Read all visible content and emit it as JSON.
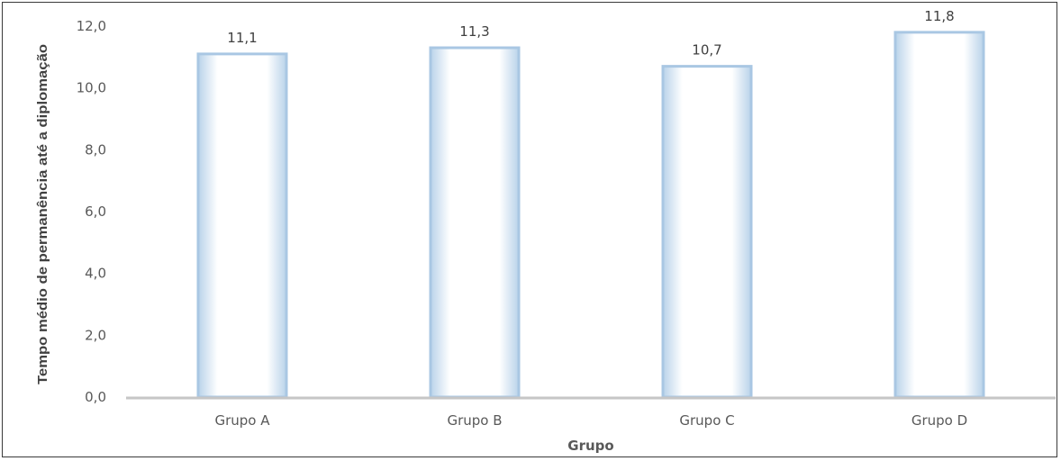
{
  "chart_data": {
    "type": "bar",
    "categories": [
      "Grupo A",
      "Grupo B",
      "Grupo C",
      "Grupo D"
    ],
    "values": [
      11.1,
      11.3,
      10.7,
      11.8
    ],
    "data_labels": [
      "11,1",
      "11,3",
      "10,7",
      "11,8"
    ],
    "title": "",
    "xlabel": "Grupo",
    "ylabel": "Tempo médio de permanência até a diplomação",
    "ylim": [
      0,
      12
    ],
    "yticks": [
      0,
      2,
      4,
      6,
      8,
      10,
      12
    ],
    "ytick_labels": [
      "0,0",
      "2,0",
      "4,0",
      "6,0",
      "8,0",
      "10,0",
      "12,0"
    ],
    "grid": false,
    "legend": "none",
    "colors": {
      "bar_edge": "#a9c7e3",
      "bar_fill_center": "#ffffff",
      "axis": "#c6c6c6"
    }
  }
}
